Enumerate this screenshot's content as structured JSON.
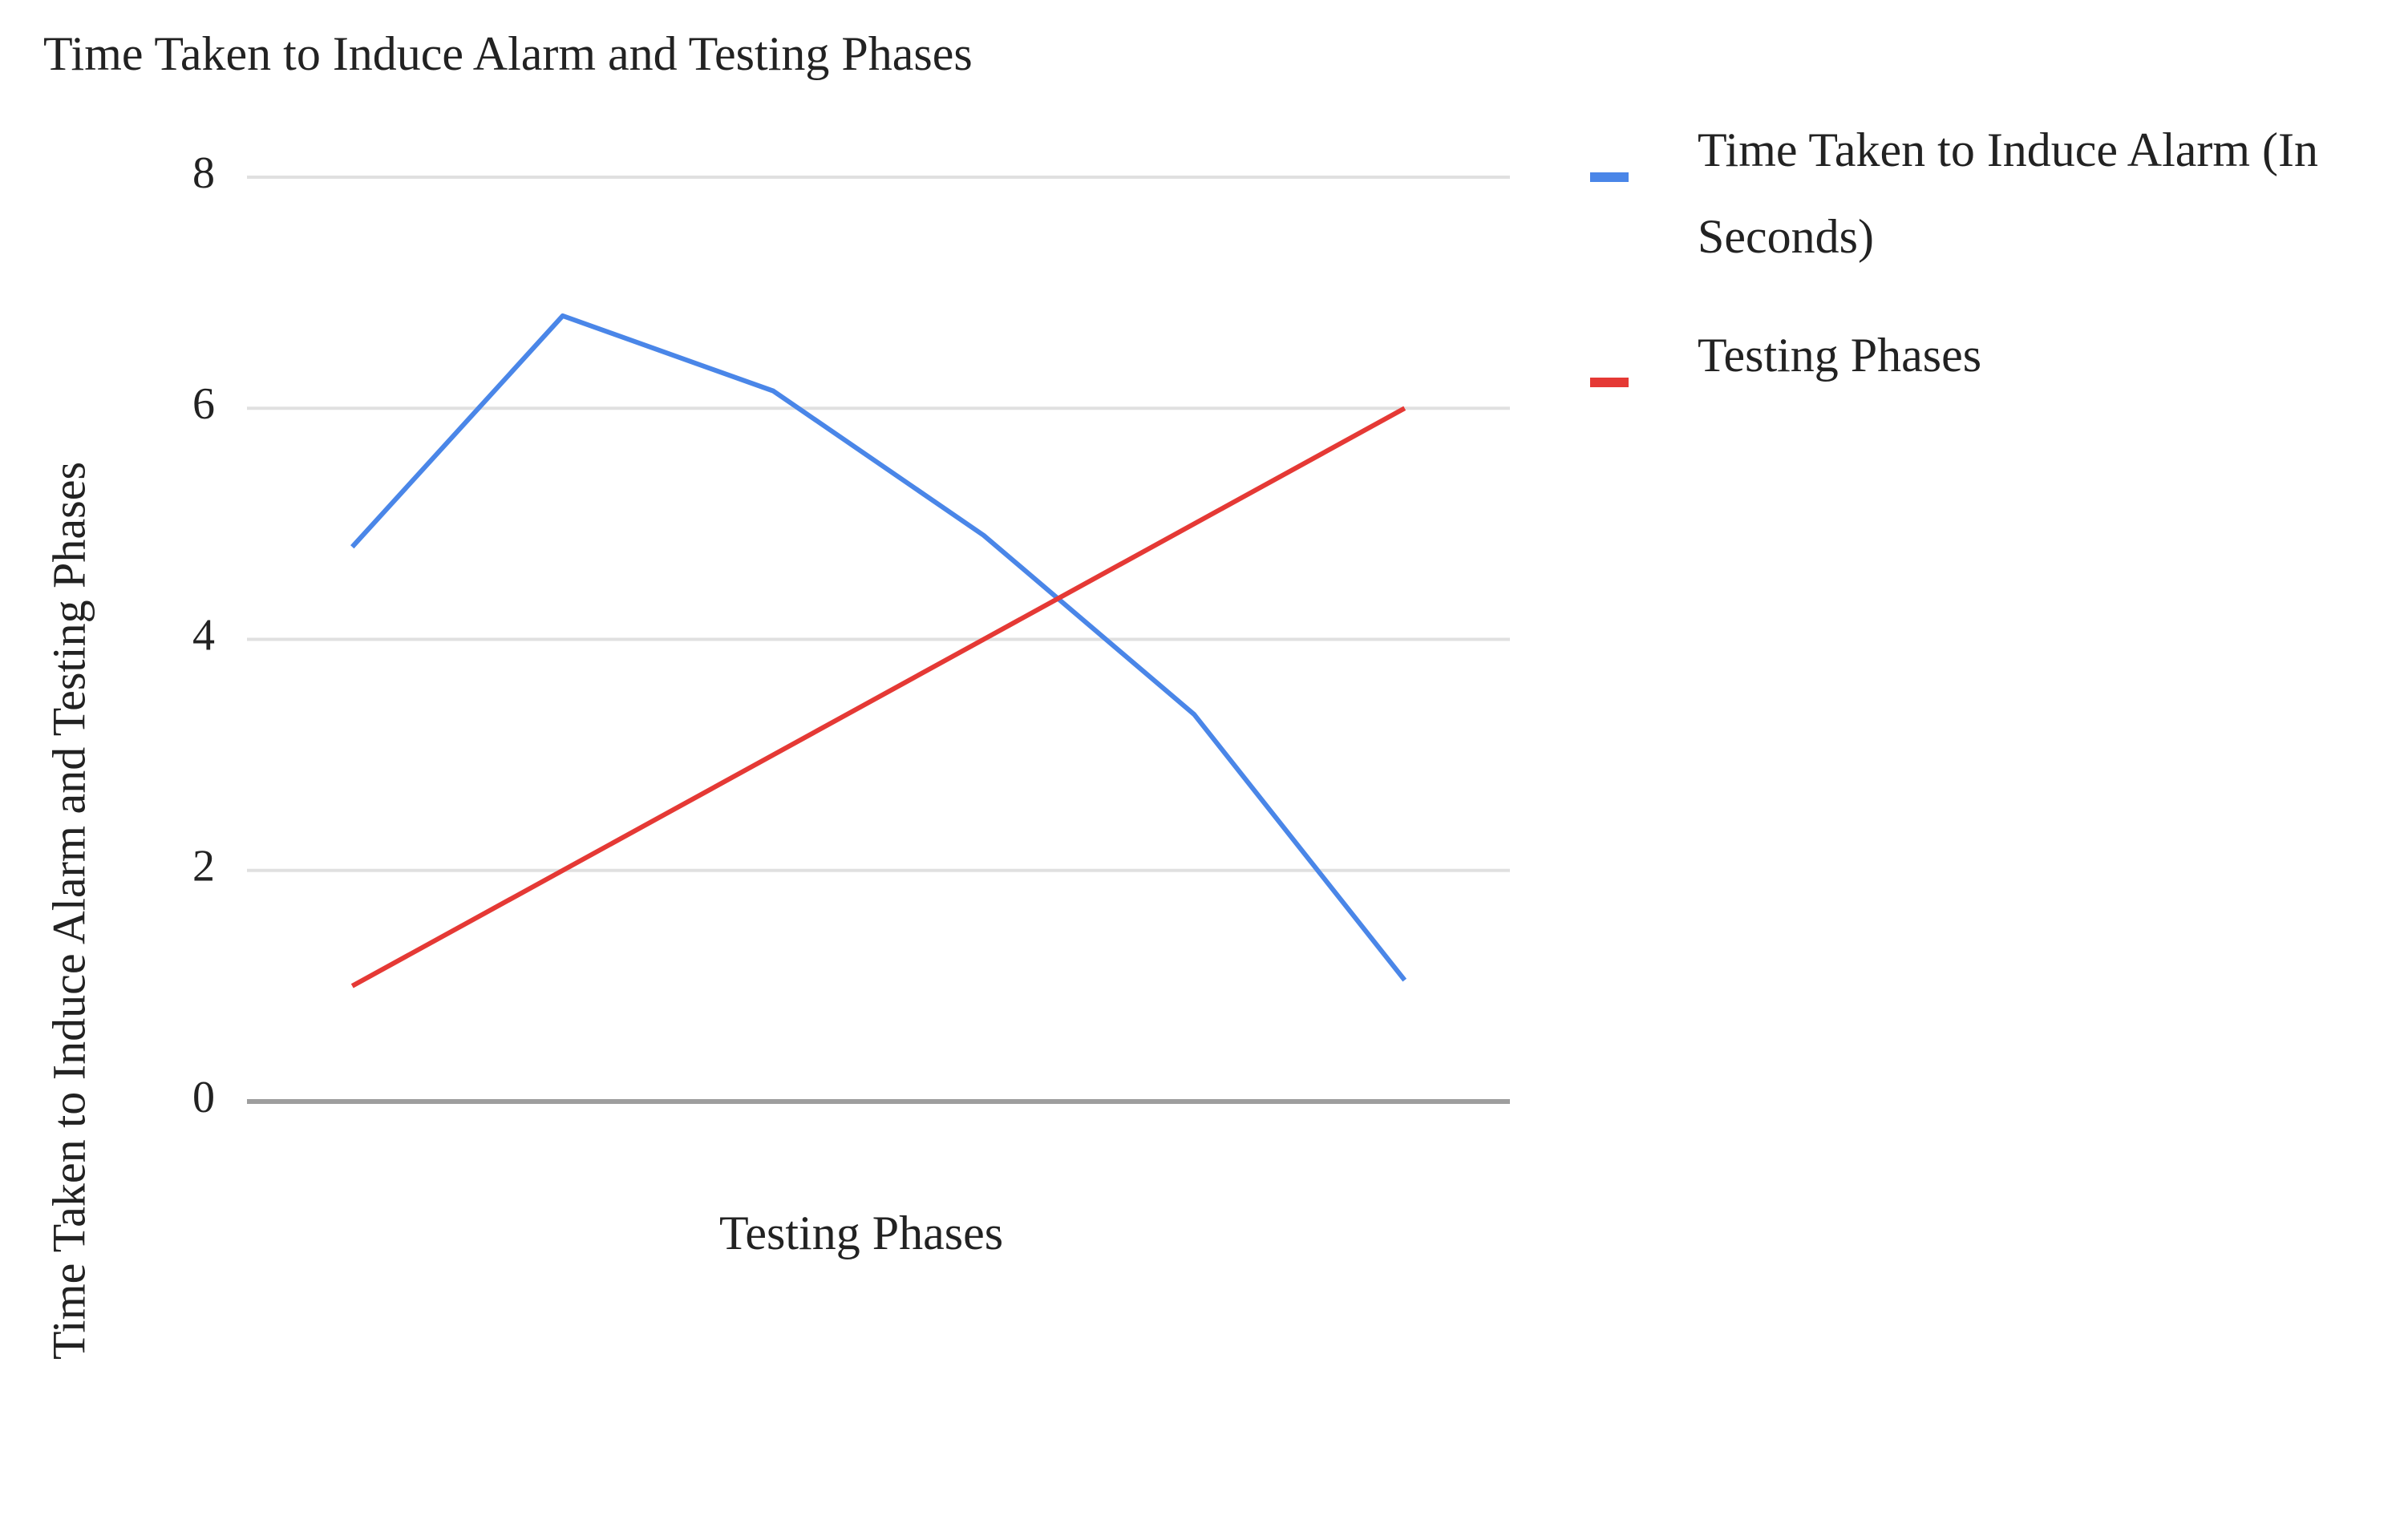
{
  "chart_data": {
    "type": "line",
    "title": "Time Taken to Induce Alarm and Testing Phases",
    "x_label": "Testing Phases",
    "y_label": "Time Taken to Induce Alarm and Testing Phases",
    "categories": [
      null,
      null,
      null,
      null,
      null,
      null
    ],
    "series": [
      {
        "name": "Time Taken to Induce Alarm (In Seconds)",
        "color": "#4a86e8",
        "values": [
          4.8,
          6.8,
          6.15,
          4.9,
          3.35,
          1.05
        ]
      },
      {
        "name": "Testing Phases",
        "color": "#e53935",
        "values": [
          1,
          2,
          3,
          4,
          5,
          6
        ]
      }
    ],
    "ylim": [
      0,
      8
    ],
    "yticks": [
      0,
      2,
      4,
      6,
      8
    ],
    "grid": true,
    "legend": "right"
  }
}
